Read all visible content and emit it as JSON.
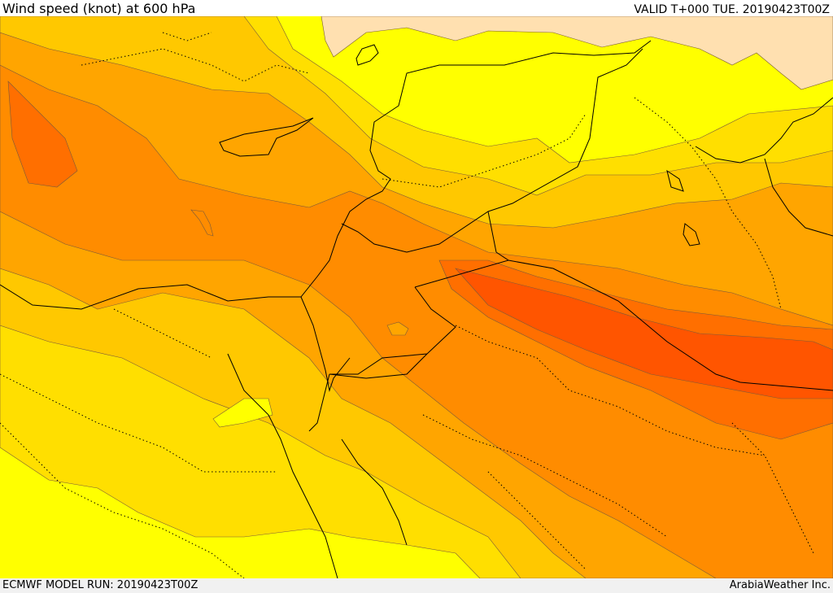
{
  "header": {
    "title": "Wind speed (knot) at 600 hPa",
    "valid": "VALID T+000 TUE. 20190423T00Z"
  },
  "footer": {
    "model_run": "ECMWF MODEL RUN: 20190423T00Z",
    "credit": "ArabiaWeather Inc."
  },
  "map": {
    "variable": "wind speed",
    "units": "knot",
    "level": "600 hPa",
    "palette": {
      "band_1": "#ffff00",
      "band_2": "#ffdf00",
      "band_3": "#ffc800",
      "band_4": "#ffa500",
      "band_5": "#ff8c00",
      "band_6": "#ff6f00",
      "band_7": "#ff5500",
      "light": "#ffe0b0",
      "border": "#000000",
      "contour": "#7a5a3a"
    }
  }
}
